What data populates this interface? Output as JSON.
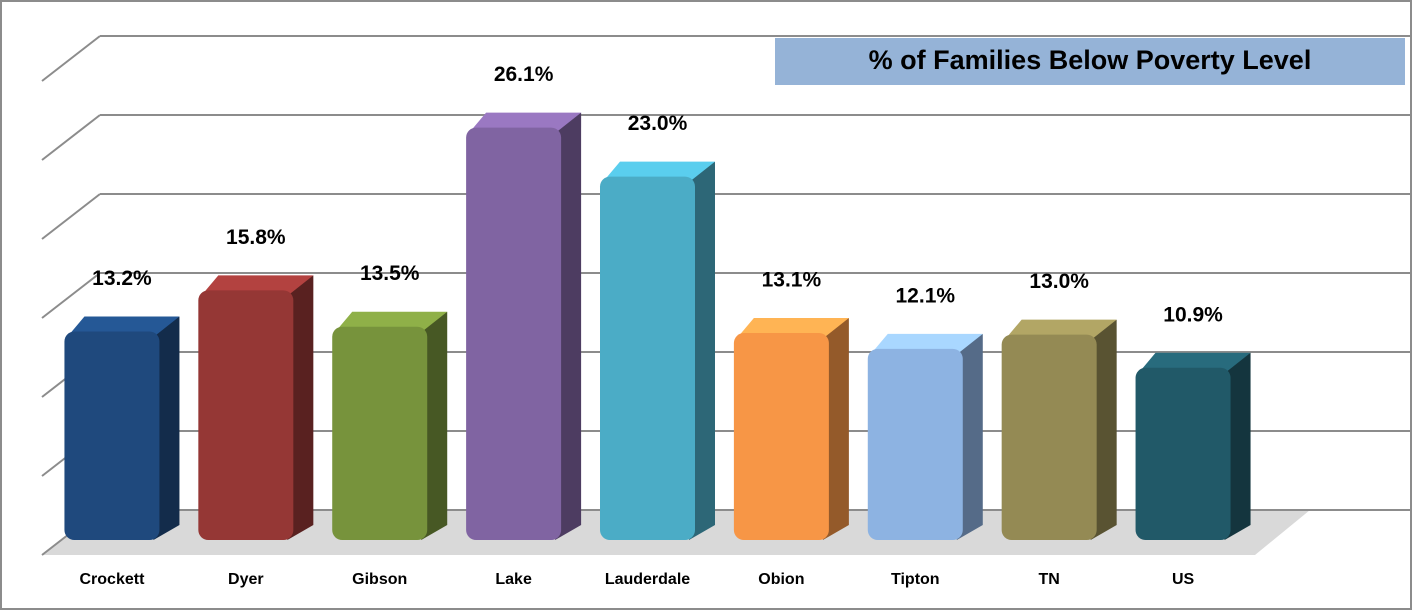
{
  "chart_data": {
    "type": "bar3d",
    "title": "% of Families Below Poverty Level",
    "categories": [
      "Crockett",
      "Dyer",
      "Gibson",
      "Lake",
      "Lauderdale",
      "Obion",
      "Tipton",
      "TN",
      "US"
    ],
    "values": [
      13.2,
      15.8,
      13.5,
      26.1,
      23.0,
      13.1,
      12.1,
      13.0,
      10.9
    ],
    "value_labels": [
      "13.2%",
      "15.8%",
      "13.5%",
      "26.1%",
      "23.0%",
      "13.1%",
      "12.1%",
      "13.0%",
      "10.9%"
    ],
    "colors": [
      "#1f497d",
      "#953735",
      "#77933c",
      "#8064a2",
      "#4bacc6",
      "#f79646",
      "#8db3e2",
      "#948a54",
      "#215968"
    ],
    "ylim": [
      0,
      30
    ],
    "yticks": [
      0,
      5,
      10,
      15,
      20,
      25,
      30
    ],
    "grid": true
  }
}
